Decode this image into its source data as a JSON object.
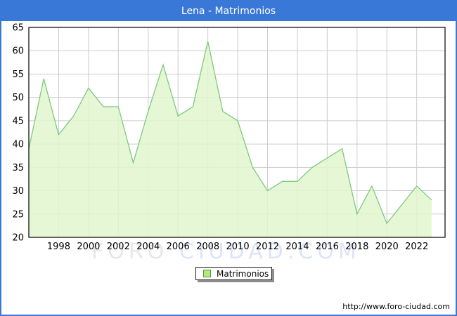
{
  "window": {
    "title": "Lena - Matrimonios",
    "footer_url": "http://www.foro-ciudad.com"
  },
  "legend": {
    "label": "Matrimonios"
  },
  "watermark": {
    "part1": "FORO ",
    "part2": "CIUDAD.COM"
  },
  "colors": {
    "titlebar_bg": "#3a78d8",
    "outer_border": "#3a78d8",
    "line_green": "#7fc87f",
    "fill_green": "#e1f6cc",
    "grid_gray": "#cccccc",
    "plot_border": "#000000",
    "tick_text": "#000000",
    "watermark_gray": "#e7e7e7",
    "watermark_blue": "#dce4f7",
    "legend_swatch_fill": "#b4e87a",
    "legend_swatch_border": "#4e9a3a"
  },
  "chart_data": {
    "type": "area",
    "title": "Lena - Matrimonios",
    "series_name": "Matrimonios",
    "x": [
      1996,
      1997,
      1998,
      1999,
      2000,
      2001,
      2002,
      2003,
      2004,
      2005,
      2006,
      2007,
      2008,
      2009,
      2010,
      2011,
      2012,
      2013,
      2014,
      2015,
      2016,
      2017,
      2018,
      2019,
      2020,
      2021,
      2022,
      2023
    ],
    "values": [
      39,
      54,
      42,
      46,
      52,
      48,
      48,
      36,
      47,
      57,
      46,
      48,
      62,
      47,
      45,
      35,
      30,
      32,
      32,
      35,
      37,
      39,
      25,
      31,
      23,
      27,
      31,
      28
    ],
    "ylim": [
      20,
      65
    ],
    "xlim": [
      1996,
      2023.9
    ],
    "yticks": [
      20,
      25,
      30,
      35,
      40,
      45,
      50,
      55,
      60,
      65
    ],
    "xticks": [
      1998,
      2000,
      2002,
      2004,
      2006,
      2008,
      2010,
      2012,
      2014,
      2016,
      2018,
      2020,
      2022
    ],
    "xlabel": "",
    "ylabel": "",
    "grid": true,
    "legend_position": "bottom-center"
  }
}
